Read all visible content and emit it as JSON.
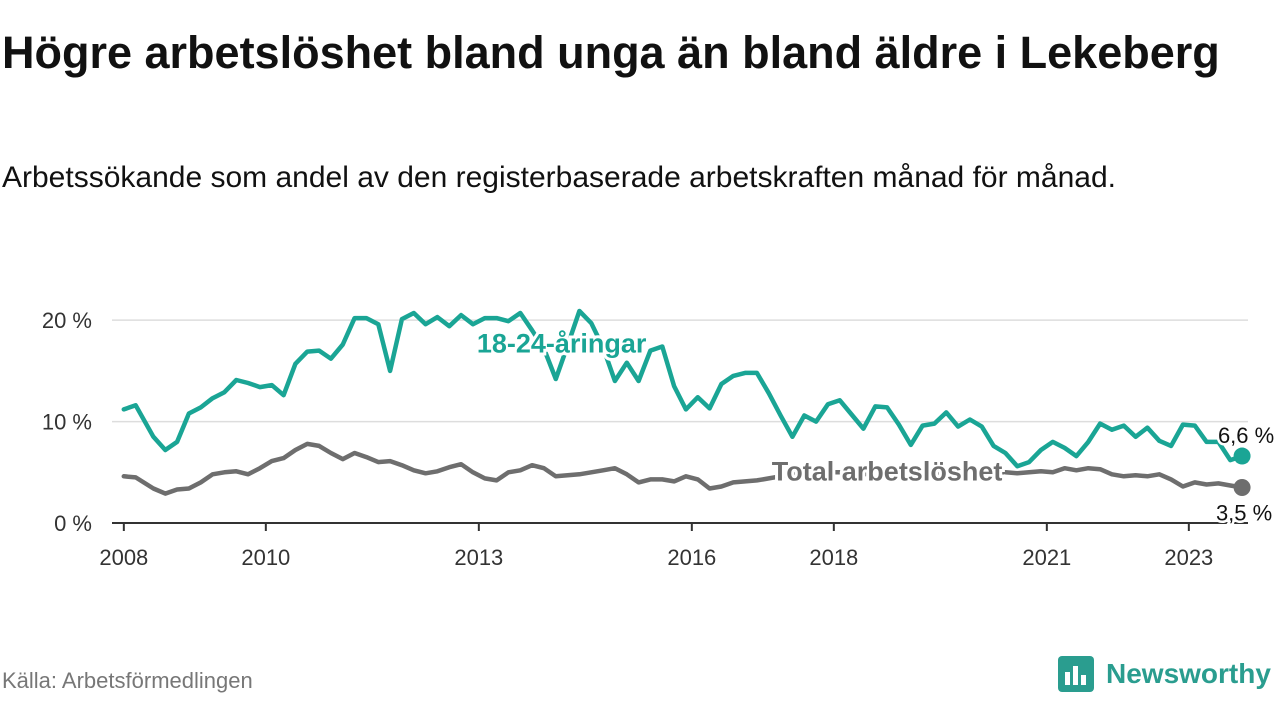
{
  "header": {
    "title": "Högre arbetslöshet bland unga än bland äldre i Lekeberg",
    "subtitle": "Arbetssökande som andel av den registerbaserade arbetskraften månad för månad."
  },
  "footer": {
    "source": "Källa: Arbetsförmedlingen",
    "brand": "Newsworthy"
  },
  "colors": {
    "youth": "#1aa595",
    "total": "#6e6e6e",
    "grid": "#dddddd",
    "axis": "#333333",
    "brand": "#2a9d8f"
  },
  "chart_data": {
    "type": "line",
    "title": "Högre arbetslöshet bland unga än bland äldre i Lekeberg",
    "subtitle": "Arbetssökande som andel av den registerbaserade arbetskraften månad för månad.",
    "xlabel": "",
    "ylabel": "",
    "x_ticks": [
      "2008",
      "2010",
      "2013",
      "2016",
      "2018",
      "2021",
      "2023"
    ],
    "x_tick_dates": [
      "2008-01",
      "2010-01",
      "2013-01",
      "2016-01",
      "2018-01",
      "2021-01",
      "2023-01"
    ],
    "xlim": [
      "2007-11",
      "2023-11"
    ],
    "y_ticks": [
      0,
      10,
      20
    ],
    "y_tick_labels": [
      "0 %",
      "10 %",
      "20 %"
    ],
    "ylim": [
      0,
      21
    ],
    "grid": true,
    "series": [
      {
        "name": "18-24-åringar",
        "color": "#1aa595",
        "last_value": 6.6,
        "end_label": "6,6 %",
        "points": [
          [
            "2008-01",
            11.2
          ],
          [
            "2008-03",
            11.6
          ],
          [
            "2008-06",
            8.5
          ],
          [
            "2008-08",
            7.2
          ],
          [
            "2008-10",
            8.0
          ],
          [
            "2008-12",
            10.8
          ],
          [
            "2009-02",
            11.4
          ],
          [
            "2009-04",
            12.3
          ],
          [
            "2009-06",
            12.9
          ],
          [
            "2009-08",
            14.1
          ],
          [
            "2009-10",
            13.8
          ],
          [
            "2009-12",
            13.4
          ],
          [
            "2010-02",
            13.6
          ],
          [
            "2010-04",
            12.6
          ],
          [
            "2010-06",
            15.7
          ],
          [
            "2010-08",
            16.9
          ],
          [
            "2010-10",
            17.0
          ],
          [
            "2010-12",
            16.2
          ],
          [
            "2011-02",
            17.6
          ],
          [
            "2011-04",
            20.2
          ],
          [
            "2011-06",
            20.2
          ],
          [
            "2011-08",
            19.6
          ],
          [
            "2011-10",
            15.0
          ],
          [
            "2011-12",
            20.1
          ],
          [
            "2012-02",
            20.7
          ],
          [
            "2012-04",
            19.6
          ],
          [
            "2012-06",
            20.3
          ],
          [
            "2012-08",
            19.4
          ],
          [
            "2012-10",
            20.5
          ],
          [
            "2012-12",
            19.6
          ],
          [
            "2013-02",
            20.2
          ],
          [
            "2013-04",
            20.2
          ],
          [
            "2013-06",
            19.9
          ],
          [
            "2013-08",
            20.7
          ],
          [
            "2013-10",
            19.0
          ],
          [
            "2013-12",
            17.2
          ],
          [
            "2014-02",
            14.2
          ],
          [
            "2014-04",
            17.5
          ],
          [
            "2014-06",
            20.9
          ],
          [
            "2014-08",
            19.7
          ],
          [
            "2014-10",
            17.3
          ],
          [
            "2014-12",
            14.0
          ],
          [
            "2015-02",
            15.8
          ],
          [
            "2015-04",
            14.0
          ],
          [
            "2015-06",
            17.0
          ],
          [
            "2015-08",
            17.4
          ],
          [
            "2015-10",
            13.5
          ],
          [
            "2015-12",
            11.2
          ],
          [
            "2016-02",
            12.4
          ],
          [
            "2016-04",
            11.3
          ],
          [
            "2016-06",
            13.7
          ],
          [
            "2016-08",
            14.5
          ],
          [
            "2016-10",
            14.8
          ],
          [
            "2016-12",
            14.8
          ],
          [
            "2017-02",
            12.8
          ],
          [
            "2017-04",
            10.6
          ],
          [
            "2017-06",
            8.5
          ],
          [
            "2017-08",
            10.6
          ],
          [
            "2017-10",
            10.0
          ],
          [
            "2017-12",
            11.7
          ],
          [
            "2018-02",
            12.1
          ],
          [
            "2018-04",
            10.7
          ],
          [
            "2018-06",
            9.3
          ],
          [
            "2018-08",
            11.5
          ],
          [
            "2018-10",
            11.4
          ],
          [
            "2018-12",
            9.7
          ],
          [
            "2019-02",
            7.7
          ],
          [
            "2019-04",
            9.6
          ],
          [
            "2019-06",
            9.8
          ],
          [
            "2019-08",
            10.9
          ],
          [
            "2019-10",
            9.5
          ],
          [
            "2019-12",
            10.2
          ],
          [
            "2020-02",
            9.5
          ],
          [
            "2020-04",
            7.6
          ],
          [
            "2020-06",
            6.9
          ],
          [
            "2020-08",
            5.6
          ],
          [
            "2020-10",
            6.0
          ],
          [
            "2020-12",
            7.2
          ],
          [
            "2021-02",
            8.0
          ],
          [
            "2021-04",
            7.4
          ],
          [
            "2021-06",
            6.6
          ],
          [
            "2021-08",
            8.0
          ],
          [
            "2021-10",
            9.8
          ],
          [
            "2021-12",
            9.2
          ],
          [
            "2022-02",
            9.6
          ],
          [
            "2022-04",
            8.5
          ],
          [
            "2022-06",
            9.4
          ],
          [
            "2022-08",
            8.1
          ],
          [
            "2022-10",
            7.6
          ],
          [
            "2022-12",
            9.7
          ],
          [
            "2023-02",
            9.6
          ],
          [
            "2023-04",
            8.0
          ],
          [
            "2023-06",
            8.0
          ],
          [
            "2023-08",
            6.2
          ],
          [
            "2023-10",
            6.6
          ]
        ]
      },
      {
        "name": "Total arbetslöshet",
        "color": "#6e6e6e",
        "last_value": 3.5,
        "end_label": "3,5 %",
        "points": [
          [
            "2008-01",
            4.6
          ],
          [
            "2008-03",
            4.5
          ],
          [
            "2008-06",
            3.4
          ],
          [
            "2008-08",
            2.9
          ],
          [
            "2008-10",
            3.3
          ],
          [
            "2008-12",
            3.4
          ],
          [
            "2009-02",
            4.0
          ],
          [
            "2009-04",
            4.8
          ],
          [
            "2009-06",
            5.0
          ],
          [
            "2009-08",
            5.1
          ],
          [
            "2009-10",
            4.8
          ],
          [
            "2009-12",
            5.4
          ],
          [
            "2010-02",
            6.1
          ],
          [
            "2010-04",
            6.4
          ],
          [
            "2010-06",
            7.2
          ],
          [
            "2010-08",
            7.8
          ],
          [
            "2010-10",
            7.6
          ],
          [
            "2010-12",
            6.9
          ],
          [
            "2011-02",
            6.3
          ],
          [
            "2011-04",
            6.9
          ],
          [
            "2011-06",
            6.5
          ],
          [
            "2011-08",
            6.0
          ],
          [
            "2011-10",
            6.1
          ],
          [
            "2011-12",
            5.7
          ],
          [
            "2012-02",
            5.2
          ],
          [
            "2012-04",
            4.9
          ],
          [
            "2012-06",
            5.1
          ],
          [
            "2012-08",
            5.5
          ],
          [
            "2012-10",
            5.8
          ],
          [
            "2012-12",
            5.0
          ],
          [
            "2013-02",
            4.4
          ],
          [
            "2013-04",
            4.2
          ],
          [
            "2013-06",
            5.0
          ],
          [
            "2013-08",
            5.2
          ],
          [
            "2013-10",
            5.7
          ],
          [
            "2013-12",
            5.4
          ],
          [
            "2014-02",
            4.6
          ],
          [
            "2014-04",
            4.7
          ],
          [
            "2014-06",
            4.8
          ],
          [
            "2014-08",
            5.0
          ],
          [
            "2014-10",
            5.2
          ],
          [
            "2014-12",
            5.4
          ],
          [
            "2015-02",
            4.8
          ],
          [
            "2015-04",
            4.0
          ],
          [
            "2015-06",
            4.3
          ],
          [
            "2015-08",
            4.3
          ],
          [
            "2015-10",
            4.1
          ],
          [
            "2015-12",
            4.6
          ],
          [
            "2016-02",
            4.3
          ],
          [
            "2016-04",
            3.4
          ],
          [
            "2016-06",
            3.6
          ],
          [
            "2016-08",
            4.0
          ],
          [
            "2016-10",
            4.1
          ],
          [
            "2016-12",
            4.2
          ],
          [
            "2017-02",
            4.4
          ],
          [
            "2017-04",
            4.6
          ],
          [
            "2017-06",
            4.8
          ],
          [
            "2017-08",
            4.9
          ],
          [
            "2017-10",
            5.0
          ],
          [
            "2017-12",
            5.0
          ],
          [
            "2018-02",
            5.0
          ],
          [
            "2018-04",
            4.9
          ],
          [
            "2018-06",
            4.8
          ],
          [
            "2018-08",
            4.9
          ],
          [
            "2018-10",
            5.0
          ],
          [
            "2018-12",
            5.0
          ],
          [
            "2019-02",
            4.9
          ],
          [
            "2019-04",
            4.8
          ],
          [
            "2019-06",
            4.8
          ],
          [
            "2019-08",
            4.9
          ],
          [
            "2019-10",
            5.0
          ],
          [
            "2019-12",
            5.0
          ],
          [
            "2020-02",
            5.1
          ],
          [
            "2020-04",
            5.0
          ],
          [
            "2020-06",
            5.0
          ],
          [
            "2020-08",
            4.9
          ],
          [
            "2020-10",
            5.0
          ],
          [
            "2020-12",
            5.1
          ],
          [
            "2021-02",
            5.0
          ],
          [
            "2021-04",
            5.4
          ],
          [
            "2021-06",
            5.2
          ],
          [
            "2021-08",
            5.4
          ],
          [
            "2021-10",
            5.3
          ],
          [
            "2021-12",
            4.8
          ],
          [
            "2022-02",
            4.6
          ],
          [
            "2022-04",
            4.7
          ],
          [
            "2022-06",
            4.6
          ],
          [
            "2022-08",
            4.8
          ],
          [
            "2022-10",
            4.3
          ],
          [
            "2022-12",
            3.6
          ],
          [
            "2023-02",
            4.0
          ],
          [
            "2023-04",
            3.8
          ],
          [
            "2023-06",
            3.9
          ],
          [
            "2023-08",
            3.7
          ],
          [
            "2023-10",
            3.5
          ]
        ]
      }
    ]
  }
}
